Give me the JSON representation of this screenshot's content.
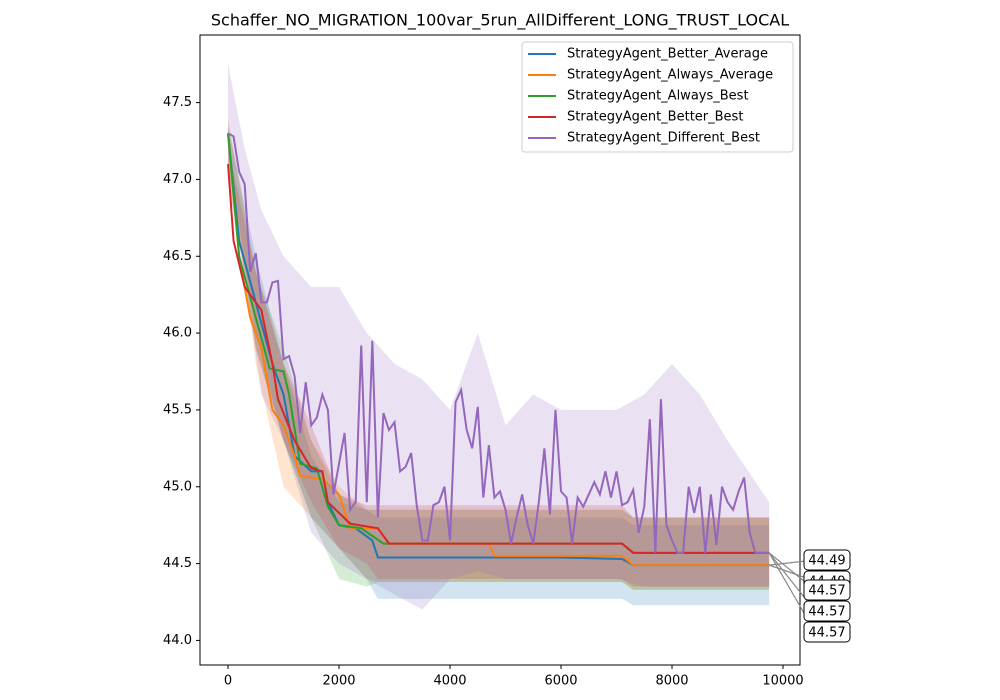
{
  "chart_data": {
    "type": "line",
    "title": "Schaffer_NO_MIGRATION_100var_5run_AllDifferent_LONG_TRUST_LOCAL",
    "xlim": [
      -505,
      10306
    ],
    "ylim": [
      43.84,
      47.94
    ],
    "xticks": [
      0,
      2000,
      4000,
      6000,
      8000,
      10000
    ],
    "yticks": [
      {
        "value": 44,
        "label": "44.0"
      },
      44.5,
      {
        "value": 45,
        "label": "45.0"
      },
      45.5,
      {
        "value": 46,
        "label": "46.0"
      },
      46.5,
      {
        "value": 47,
        "label": "47.0"
      },
      47.5
    ],
    "legend": "upper right",
    "series": [
      {
        "name": "StrategyAgent_Better_Average",
        "color": "#1f77b4",
        "x": [
          0,
          200,
          500,
          800,
          1000,
          1200,
          1500,
          1700,
          1800,
          2000,
          2300,
          2600,
          2700,
          6000,
          7100,
          7300,
          9750
        ],
        "values": [
          47.3,
          46.6,
          46.2,
          45.8,
          45.6,
          45.2,
          45.1,
          45.1,
          44.9,
          44.75,
          44.73,
          44.65,
          44.54,
          44.54,
          44.53,
          44.49,
          44.49
        ],
        "band": {
          "x": [
            0,
            500,
            1000,
            1500,
            2000,
            2500,
            2700,
            7100,
            7300,
            9750
          ],
          "lower": [
            47.2,
            46.0,
            45.3,
            44.8,
            44.6,
            44.4,
            44.27,
            44.27,
            44.23,
            44.23
          ],
          "upper": [
            47.35,
            46.5,
            45.8,
            45.2,
            44.9,
            44.85,
            44.8,
            44.8,
            44.75,
            44.75
          ]
        }
      },
      {
        "name": "StrategyAgent_Always_Average",
        "color": "#ff7f0e",
        "x": [
          0,
          200,
          400,
          600,
          800,
          1000,
          1200,
          1300,
          1700,
          2000,
          2200,
          2700,
          2900,
          4700,
          4800,
          7100,
          7300,
          9750
        ],
        "values": [
          47.3,
          46.5,
          46.1,
          45.9,
          45.5,
          45.4,
          45.2,
          45.07,
          45.05,
          44.95,
          44.73,
          44.73,
          44.63,
          44.63,
          44.55,
          44.55,
          44.49,
          44.49
        ],
        "band": {
          "x": [
            0,
            500,
            1000,
            1500,
            2000,
            2500,
            2700,
            7100,
            7300,
            9750
          ],
          "lower": [
            47.2,
            45.8,
            45.0,
            44.8,
            44.6,
            44.4,
            44.38,
            44.38,
            44.33,
            44.33
          ],
          "upper": [
            47.4,
            46.4,
            45.8,
            45.3,
            45.0,
            44.85,
            44.85,
            44.85,
            44.8,
            44.8
          ]
        }
      },
      {
        "name": "StrategyAgent_Always_Best",
        "color": "#2ca02c",
        "x": [
          0,
          200,
          500,
          750,
          1000,
          1100,
          1300,
          1600,
          1800,
          2000,
          2400,
          2800,
          7100,
          7300,
          9750
        ],
        "values": [
          47.3,
          46.5,
          46.1,
          45.77,
          45.75,
          45.6,
          45.15,
          45.12,
          44.87,
          44.75,
          44.73,
          44.63,
          44.63,
          44.57,
          44.57
        ],
        "band": {
          "x": [
            0,
            500,
            1000,
            1500,
            2000,
            2500,
            2700,
            7100,
            7300,
            9750
          ],
          "lower": [
            47.1,
            45.9,
            45.3,
            44.8,
            44.4,
            44.35,
            44.38,
            44.38,
            44.33,
            44.33
          ],
          "upper": [
            47.35,
            46.4,
            45.9,
            45.3,
            44.95,
            44.85,
            44.85,
            44.85,
            44.8,
            44.8
          ]
        }
      },
      {
        "name": "StrategyAgent_Better_Best",
        "color": "#d62728",
        "x": [
          0,
          100,
          300,
          600,
          800,
          900,
          1200,
          1500,
          1700,
          1800,
          2200,
          2700,
          2900,
          7100,
          7300,
          9750
        ],
        "values": [
          47.1,
          46.6,
          46.3,
          46.15,
          45.8,
          45.57,
          45.3,
          45.12,
          45.1,
          44.9,
          44.76,
          44.73,
          44.63,
          44.63,
          44.57,
          44.57
        ],
        "band": {
          "x": [
            0,
            500,
            1000,
            1500,
            2000,
            2500,
            2700,
            7100,
            7300,
            9750
          ],
          "lower": [
            47.0,
            45.9,
            45.3,
            44.9,
            44.6,
            44.5,
            44.4,
            44.4,
            44.35,
            44.35
          ],
          "upper": [
            47.2,
            46.4,
            45.8,
            45.4,
            44.95,
            44.88,
            44.88,
            44.88,
            44.8,
            44.8
          ]
        }
      },
      {
        "name": "StrategyAgent_Different_Best",
        "color": "#9467bd",
        "x": [
          0,
          100,
          200,
          300,
          400,
          500,
          600,
          700,
          800,
          900,
          1000,
          1100,
          1200,
          1300,
          1400,
          1500,
          1600,
          1700,
          1800,
          1900,
          2000,
          2100,
          2200,
          2300,
          2400,
          2500,
          2600,
          2700,
          2800,
          2900,
          3000,
          3100,
          3200,
          3300,
          3400,
          3500,
          3600,
          3700,
          3800,
          3900,
          4000,
          4100,
          4200,
          4300,
          4400,
          4500,
          4600,
          4700,
          4800,
          4900,
          5000,
          5100,
          5200,
          5300,
          5400,
          5500,
          5600,
          5700,
          5800,
          5900,
          6000,
          6100,
          6200,
          6300,
          6400,
          6500,
          6600,
          6700,
          6800,
          6900,
          7000,
          7100,
          7200,
          7300,
          7400,
          7500,
          7600,
          7700,
          7800,
          7900,
          8000,
          8100,
          8200,
          8300,
          8400,
          8500,
          8600,
          8700,
          8800,
          8900,
          9000,
          9100,
          9200,
          9300,
          9400,
          9500,
          9750
        ],
        "values": [
          47.3,
          47.28,
          47.05,
          46.97,
          46.4,
          46.52,
          46.2,
          46.2,
          46.33,
          46.34,
          45.83,
          45.85,
          45.72,
          45.35,
          45.68,
          45.4,
          45.45,
          45.6,
          45.5,
          44.95,
          45.15,
          45.35,
          44.85,
          44.9,
          45.92,
          44.9,
          45.95,
          44.8,
          45.48,
          45.37,
          45.42,
          45.1,
          45.13,
          45.22,
          44.88,
          44.65,
          44.65,
          44.88,
          44.9,
          45.0,
          44.65,
          45.55,
          45.63,
          45.37,
          45.25,
          45.52,
          44.93,
          45.27,
          44.93,
          44.97,
          44.85,
          44.63,
          44.8,
          44.95,
          44.75,
          44.63,
          44.9,
          45.25,
          44.82,
          45.5,
          44.97,
          44.93,
          44.63,
          44.93,
          44.87,
          44.95,
          45.03,
          44.95,
          45.1,
          44.93,
          45.1,
          44.88,
          44.9,
          44.98,
          44.7,
          44.87,
          45.44,
          44.57,
          45.57,
          44.75,
          44.65,
          44.57,
          44.57,
          45.0,
          44.83,
          45.0,
          44.57,
          44.95,
          44.62,
          45.0,
          44.9,
          44.85,
          44.97,
          45.06,
          44.7,
          44.57,
          44.57
        ],
        "band": {
          "x": [
            0,
            300,
            600,
            1000,
            1500,
            2000,
            2500,
            3000,
            3500,
            4000,
            4500,
            5000,
            5500,
            6000,
            6500,
            7000,
            7500,
            8000,
            8500,
            9000,
            9750
          ],
          "lower": [
            47.0,
            46.4,
            45.6,
            45.3,
            44.7,
            44.5,
            44.4,
            44.3,
            44.2,
            44.4,
            44.45,
            44.4,
            44.4,
            44.4,
            44.4,
            44.4,
            44.35,
            44.35,
            44.35,
            44.35,
            44.35
          ],
          "upper": [
            47.75,
            47.2,
            46.8,
            46.5,
            46.3,
            46.3,
            46.0,
            45.8,
            45.7,
            45.5,
            46.0,
            45.4,
            45.6,
            45.5,
            45.5,
            45.5,
            45.6,
            45.8,
            45.6,
            45.3,
            44.9
          ]
        }
      }
    ],
    "annotations": [
      "44.49",
      "44.49",
      "44.57",
      "44.57",
      "44.57"
    ]
  }
}
